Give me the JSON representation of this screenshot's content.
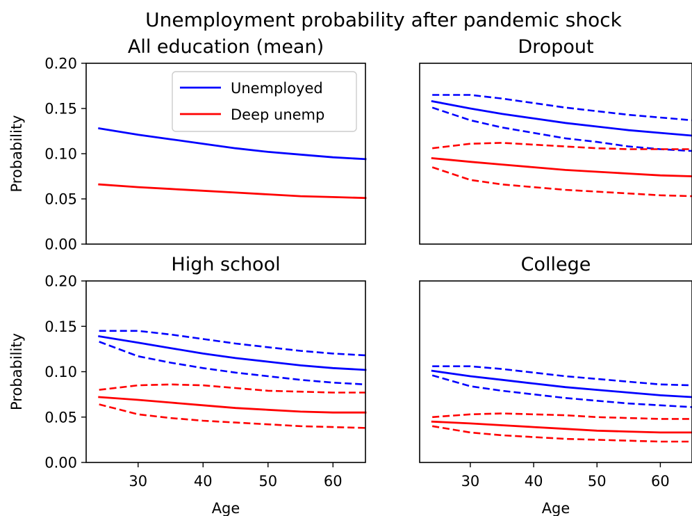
{
  "figure_title": "Unemployment probability after pandemic shock",
  "colors": {
    "unemployed": "#0000ff",
    "deep": "#ff0000"
  },
  "chart_data": [
    {
      "type": "line",
      "title": "All education (mean)",
      "ylabel": "Probability",
      "xlabel": "",
      "xlim": [
        22,
        65
      ],
      "ylim": [
        0,
        0.2
      ],
      "yticks": [
        "0.00",
        "0.05",
        "0.10",
        "0.15",
        "0.20"
      ],
      "xticks": [],
      "legend": {
        "position": "top-right",
        "entries": [
          "Unemployed",
          "Deep unemp"
        ]
      },
      "x": [
        24,
        30,
        35,
        40,
        45,
        50,
        55,
        60,
        65
      ],
      "series": [
        {
          "name": "Unemployed",
          "color": "#0000ff",
          "style": "solid",
          "values": [
            0.128,
            0.121,
            0.116,
            0.111,
            0.106,
            0.102,
            0.099,
            0.096,
            0.094
          ]
        },
        {
          "name": "Deep unemp",
          "color": "#ff0000",
          "style": "solid",
          "values": [
            0.066,
            0.063,
            0.061,
            0.059,
            0.057,
            0.055,
            0.053,
            0.052,
            0.051
          ]
        }
      ]
    },
    {
      "type": "line",
      "title": "Dropout",
      "ylabel": "",
      "xlabel": "",
      "xlim": [
        22,
        65
      ],
      "ylim": [
        0,
        0.2
      ],
      "yticks": [],
      "xticks": [],
      "x": [
        24,
        30,
        35,
        40,
        45,
        50,
        55,
        60,
        65
      ],
      "series": [
        {
          "color": "#0000ff",
          "style": "solid",
          "values": [
            0.158,
            0.15,
            0.144,
            0.139,
            0.134,
            0.13,
            0.126,
            0.123,
            0.12
          ]
        },
        {
          "color": "#0000ff",
          "style": "dashed",
          "values": [
            0.165,
            0.165,
            0.161,
            0.156,
            0.151,
            0.147,
            0.143,
            0.14,
            0.137
          ]
        },
        {
          "color": "#0000ff",
          "style": "dashed",
          "values": [
            0.151,
            0.137,
            0.129,
            0.123,
            0.117,
            0.113,
            0.108,
            0.105,
            0.103
          ]
        },
        {
          "color": "#ff0000",
          "style": "solid",
          "values": [
            0.095,
            0.091,
            0.088,
            0.085,
            0.082,
            0.08,
            0.078,
            0.076,
            0.075
          ]
        },
        {
          "color": "#ff0000",
          "style": "dashed",
          "values": [
            0.106,
            0.111,
            0.112,
            0.11,
            0.108,
            0.106,
            0.105,
            0.105,
            0.105
          ]
        },
        {
          "color": "#ff0000",
          "style": "dashed",
          "values": [
            0.085,
            0.071,
            0.066,
            0.063,
            0.06,
            0.058,
            0.056,
            0.054,
            0.053
          ]
        }
      ]
    },
    {
      "type": "line",
      "title": "High school",
      "ylabel": "Probability",
      "xlabel": "Age",
      "xlim": [
        22,
        65
      ],
      "ylim": [
        0,
        0.2
      ],
      "yticks": [
        "0.00",
        "0.05",
        "0.10",
        "0.15",
        "0.20"
      ],
      "xticks": [
        "30",
        "40",
        "50",
        "60"
      ],
      "x": [
        24,
        30,
        35,
        40,
        45,
        50,
        55,
        60,
        65
      ],
      "series": [
        {
          "color": "#0000ff",
          "style": "solid",
          "values": [
            0.139,
            0.132,
            0.126,
            0.12,
            0.115,
            0.111,
            0.107,
            0.104,
            0.102
          ]
        },
        {
          "color": "#0000ff",
          "style": "dashed",
          "values": [
            0.145,
            0.145,
            0.141,
            0.136,
            0.131,
            0.127,
            0.123,
            0.12,
            0.118
          ]
        },
        {
          "color": "#0000ff",
          "style": "dashed",
          "values": [
            0.133,
            0.117,
            0.11,
            0.104,
            0.099,
            0.095,
            0.091,
            0.088,
            0.086
          ]
        },
        {
          "color": "#ff0000",
          "style": "solid",
          "values": [
            0.072,
            0.069,
            0.066,
            0.063,
            0.06,
            0.058,
            0.056,
            0.055,
            0.055
          ]
        },
        {
          "color": "#ff0000",
          "style": "dashed",
          "values": [
            0.08,
            0.085,
            0.086,
            0.085,
            0.082,
            0.079,
            0.078,
            0.077,
            0.077
          ]
        },
        {
          "color": "#ff0000",
          "style": "dashed",
          "values": [
            0.064,
            0.053,
            0.049,
            0.046,
            0.044,
            0.042,
            0.04,
            0.039,
            0.038
          ]
        }
      ]
    },
    {
      "type": "line",
      "title": "College",
      "ylabel": "",
      "xlabel": "Age",
      "xlim": [
        22,
        65
      ],
      "ylim": [
        0,
        0.2
      ],
      "yticks": [],
      "xticks": [
        "30",
        "40",
        "50",
        "60"
      ],
      "x": [
        24,
        30,
        35,
        40,
        45,
        50,
        55,
        60,
        65
      ],
      "series": [
        {
          "color": "#0000ff",
          "style": "solid",
          "values": [
            0.101,
            0.095,
            0.091,
            0.087,
            0.083,
            0.08,
            0.077,
            0.074,
            0.072
          ]
        },
        {
          "color": "#0000ff",
          "style": "dashed",
          "values": [
            0.106,
            0.106,
            0.103,
            0.099,
            0.095,
            0.092,
            0.089,
            0.086,
            0.085
          ]
        },
        {
          "color": "#0000ff",
          "style": "dashed",
          "values": [
            0.096,
            0.084,
            0.079,
            0.075,
            0.071,
            0.068,
            0.065,
            0.063,
            0.061
          ]
        },
        {
          "color": "#ff0000",
          "style": "solid",
          "values": [
            0.045,
            0.043,
            0.041,
            0.039,
            0.037,
            0.035,
            0.034,
            0.033,
            0.033
          ]
        },
        {
          "color": "#ff0000",
          "style": "dashed",
          "values": [
            0.05,
            0.053,
            0.054,
            0.053,
            0.052,
            0.05,
            0.049,
            0.048,
            0.048
          ]
        },
        {
          "color": "#ff0000",
          "style": "dashed",
          "values": [
            0.04,
            0.033,
            0.03,
            0.028,
            0.026,
            0.025,
            0.024,
            0.023,
            0.023
          ]
        }
      ]
    }
  ]
}
